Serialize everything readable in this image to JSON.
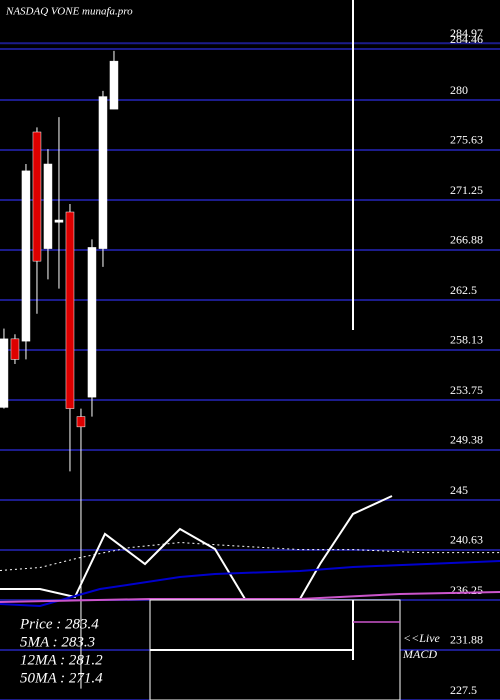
{
  "chart_data": {
    "type": "candlestick",
    "title": "NASDAQ VONE munafa.pro",
    "x": [
      1,
      2,
      3,
      4,
      5,
      6,
      7,
      8,
      9,
      10,
      11
    ],
    "open": [
      253.1,
      259.1,
      258.9,
      277.2,
      267.0,
      269.3,
      270.2,
      252.3,
      254.0,
      267.0,
      279.2
    ],
    "high": [
      260.0,
      259.5,
      274.4,
      277.6,
      275.7,
      278.5,
      270.9,
      253.0,
      267.8,
      280.8,
      284.3
    ],
    "low": [
      253.0,
      256.9,
      257.3,
      261.3,
      264.3,
      263.5,
      247.5,
      228.5,
      252.3,
      265.4,
      279.2
    ],
    "close": [
      259.1,
      257.3,
      273.8,
      265.9,
      274.4,
      269.5,
      253.0,
      251.4,
      267.1,
      280.3,
      283.4
    ],
    "up_color": "#ffffff",
    "down_color": "#dd0000",
    "xlim": [
      0.64,
      46.09
    ],
    "ylim": [
      227.5,
      288.75
    ],
    "yticks": [
      284.97,
      284.46,
      280,
      275.63,
      271.25,
      266.88,
      262.5,
      258.13,
      253.75,
      249.38,
      245,
      240.63,
      236.25,
      231.88,
      227.5
    ],
    "grid": true,
    "grid_color": "#1c1c8c",
    "lines": [
      {
        "color": "#ffffff",
        "dash": false,
        "x": [
          0.64,
          4.27,
          7.45,
          10.18,
          13.82,
          17.0,
          20.18,
          22.91,
          27.91,
          29.73,
          32.73,
          36.27
        ],
        "values": [
          237.21,
          237.21,
          236.51,
          242.03,
          239.4,
          242.46,
          240.71,
          236.34,
          236.34,
          239.4,
          243.78,
          245.35
        ]
      },
      {
        "color": "#ffffff",
        "dash": true,
        "x": [
          0.64,
          4.27,
          7.91,
          12.45,
          17.0,
          21.55,
          27.91,
          32.73,
          38.82,
          46.09
        ],
        "values": [
          238.83,
          239.09,
          239.96,
          240.84,
          241.28,
          241.01,
          240.66,
          240.66,
          240.4,
          240.4
        ]
      },
      {
        "color": "#0000cc",
        "dash": false,
        "x": [
          0.64,
          4.27,
          9.73,
          17.0,
          20.18,
          27.91,
          32.73,
          46.09
        ],
        "values": [
          235.9,
          235.73,
          237.21,
          238.26,
          238.53,
          238.79,
          239.14,
          239.66
        ]
      },
      {
        "color": "#cc55cc",
        "dash": false,
        "x": [
          0.64,
          14.27,
          27.91,
          37.0,
          46.09
        ],
        "values": [
          236.07,
          236.34,
          236.34,
          236.78,
          236.95
        ]
      }
    ],
    "annotations": [
      "Price   : 283.4",
      "5MA : 283.3",
      "12MA : 281.2",
      "50MA : 271.4"
    ],
    "panel_labels": [
      "<<Live",
      "MACD"
    ]
  }
}
